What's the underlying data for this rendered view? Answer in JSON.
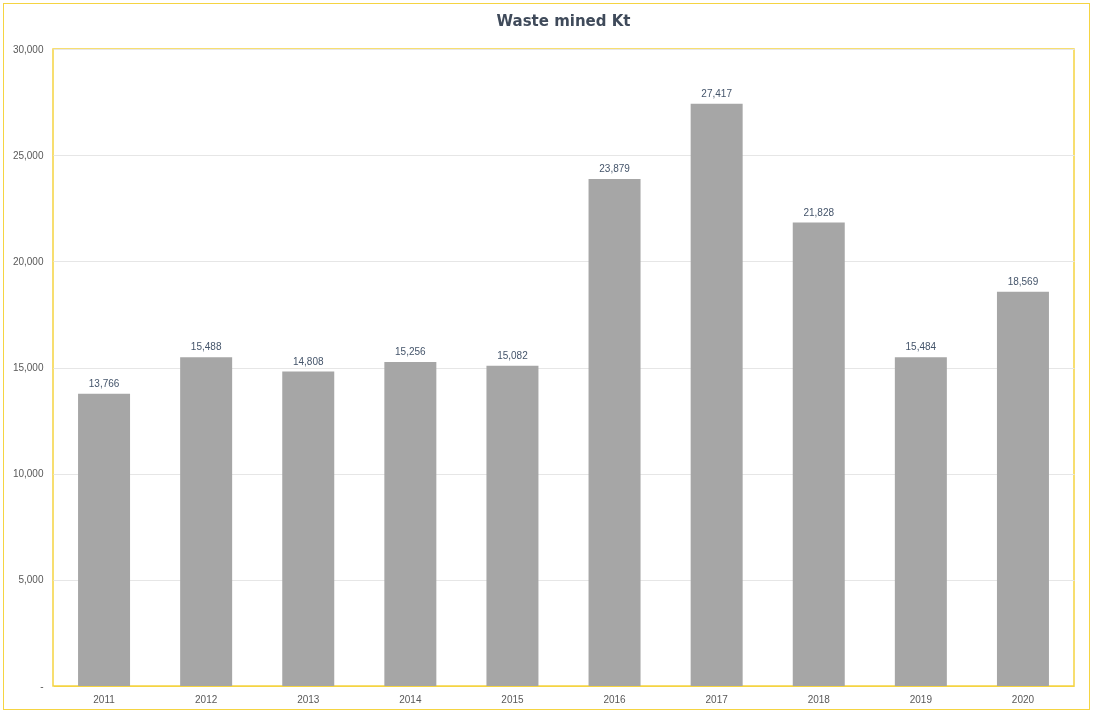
{
  "chart_data": {
    "type": "bar",
    "title": "Waste mined Kt",
    "categories": [
      "2011",
      "2012",
      "2013",
      "2014",
      "2015",
      "2016",
      "2017",
      "2018",
      "2019",
      "2020"
    ],
    "values": [
      13766,
      15488,
      14808,
      15256,
      15082,
      23879,
      27417,
      21828,
      15484,
      18569
    ],
    "value_labels": [
      "13,766",
      "15,488",
      "14,808",
      "15,256",
      "15,082",
      "23,879",
      "27,417",
      "21,828",
      "15,484",
      "18,569"
    ],
    "color": "#a6a6a6",
    "ylim": [
      0,
      30000
    ],
    "yticks": [
      {
        "value": 0,
        "label": "-"
      },
      {
        "value": 5000,
        "label": "5,000"
      },
      {
        "value": 10000,
        "label": "10,000"
      },
      {
        "value": 15000,
        "label": "15,000"
      },
      {
        "value": 20000,
        "label": "20,000"
      },
      {
        "value": 25000,
        "label": "25,000"
      },
      {
        "value": 30000,
        "label": "30,000"
      }
    ],
    "grid": "y"
  }
}
